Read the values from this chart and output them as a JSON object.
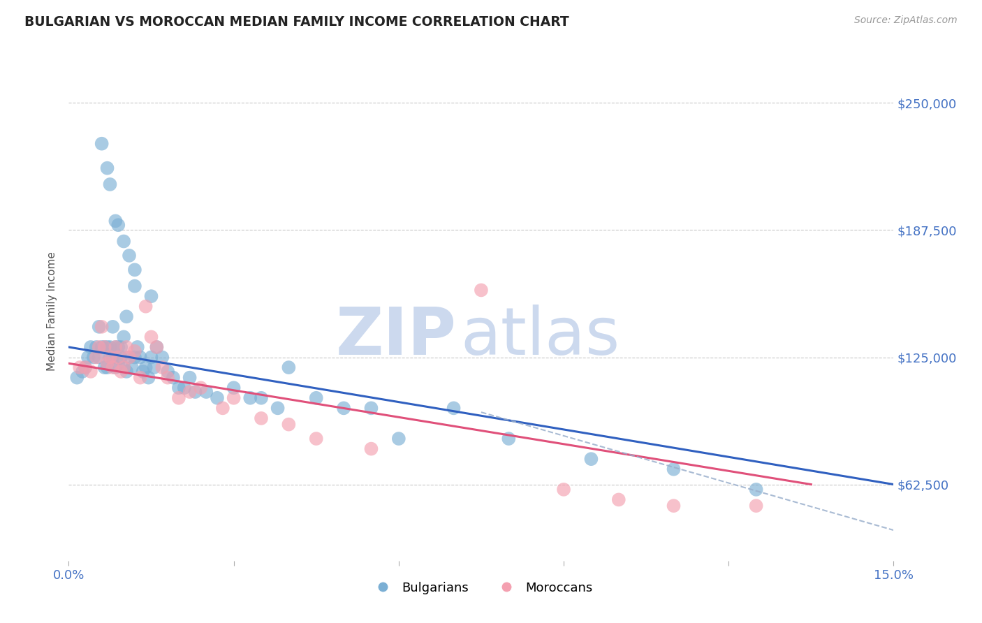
{
  "title": "BULGARIAN VS MOROCCAN MEDIAN FAMILY INCOME CORRELATION CHART",
  "source": "Source: ZipAtlas.com",
  "ylabel": "Median Family Income",
  "xlim": [
    0.0,
    15.0
  ],
  "ylim": [
    25000,
    270000
  ],
  "yticks": [
    62500,
    125000,
    187500,
    250000
  ],
  "ytick_labels": [
    "$62,500",
    "$125,000",
    "$187,500",
    "$250,000"
  ],
  "bg_color": "#ffffff",
  "grid_color": "#c8c8c8",
  "title_color": "#222222",
  "axis_label_color": "#4472c4",
  "watermark_text_zip": "ZIP",
  "watermark_text_atlas": "atlas",
  "watermark_color": "#ccd9ee",
  "bulgarian_color": "#7bafd4",
  "moroccan_color": "#f4a0b0",
  "line_bulgarian_color": "#3060c0",
  "line_moroccan_color": "#e0507a",
  "dashed_line_color": "#9aafcc",
  "bulgarians_x": [
    0.15,
    0.25,
    0.3,
    0.35,
    0.4,
    0.45,
    0.5,
    0.55,
    0.55,
    0.6,
    0.65,
    0.65,
    0.7,
    0.7,
    0.75,
    0.75,
    0.8,
    0.8,
    0.85,
    0.85,
    0.9,
    0.9,
    0.95,
    0.95,
    1.0,
    1.0,
    1.05,
    1.05,
    1.1,
    1.15,
    1.2,
    1.2,
    1.25,
    1.3,
    1.35,
    1.4,
    1.45,
    1.5,
    1.55,
    1.6,
    1.7,
    1.8,
    1.9,
    2.0,
    2.1,
    2.2,
    2.3,
    2.5,
    2.7,
    3.0,
    3.3,
    3.5,
    3.8,
    4.0,
    4.5,
    5.0,
    5.5,
    6.0,
    7.0,
    8.0,
    9.5,
    11.0,
    12.5,
    0.6,
    0.7,
    0.75,
    0.85,
    0.9,
    1.0,
    1.1,
    1.2,
    1.5
  ],
  "bulgarians_y": [
    115000,
    118000,
    120000,
    125000,
    130000,
    125000,
    130000,
    125000,
    140000,
    130000,
    130000,
    120000,
    120000,
    130000,
    130000,
    125000,
    125000,
    140000,
    130000,
    120000,
    130000,
    122000,
    125000,
    130000,
    135000,
    120000,
    145000,
    118000,
    125000,
    120000,
    160000,
    125000,
    130000,
    125000,
    118000,
    120000,
    115000,
    125000,
    120000,
    130000,
    125000,
    118000,
    115000,
    110000,
    110000,
    115000,
    108000,
    108000,
    105000,
    110000,
    105000,
    105000,
    100000,
    120000,
    105000,
    100000,
    100000,
    85000,
    100000,
    85000,
    75000,
    70000,
    60000,
    230000,
    218000,
    210000,
    192000,
    190000,
    182000,
    175000,
    168000,
    155000
  ],
  "moroccans_x": [
    0.2,
    0.3,
    0.4,
    0.5,
    0.55,
    0.6,
    0.65,
    0.7,
    0.75,
    0.8,
    0.85,
    0.9,
    0.95,
    1.0,
    1.05,
    1.1,
    1.2,
    1.3,
    1.4,
    1.5,
    1.6,
    1.7,
    1.8,
    2.0,
    2.2,
    2.4,
    2.8,
    3.0,
    3.5,
    4.0,
    4.5,
    5.5,
    7.5,
    9.0,
    10.0,
    11.0,
    12.5
  ],
  "moroccans_y": [
    120000,
    120000,
    118000,
    125000,
    130000,
    140000,
    130000,
    122000,
    125000,
    120000,
    130000,
    125000,
    118000,
    120000,
    130000,
    125000,
    128000,
    115000,
    150000,
    135000,
    130000,
    120000,
    115000,
    105000,
    108000,
    110000,
    100000,
    105000,
    95000,
    92000,
    85000,
    80000,
    158000,
    60000,
    55000,
    52000,
    52000
  ],
  "line_b_x0": 0.0,
  "line_b_y0": 130000,
  "line_b_x1": 15.0,
  "line_b_y1": 62500,
  "line_m_x0": 0.0,
  "line_m_y0": 122000,
  "line_m_x1": 13.5,
  "line_m_y1": 62500,
  "dash_x0": 7.5,
  "dash_y0": 98000,
  "dash_x1": 15.0,
  "dash_y1": 40000
}
